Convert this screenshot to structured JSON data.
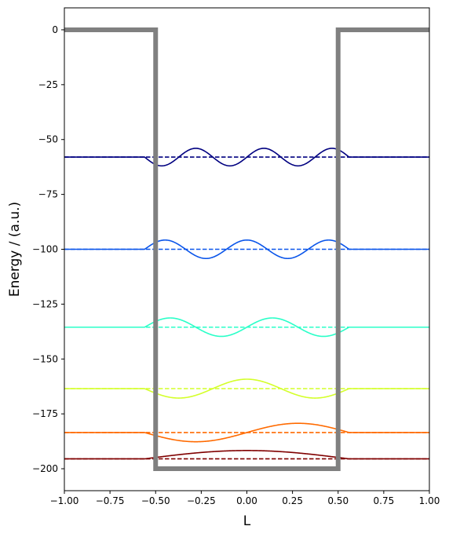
{
  "chart_data": {
    "type": "line",
    "title": "",
    "xlabel": "L",
    "ylabel": "Energy / (a.u.)",
    "xlim": [
      -1.0,
      1.0
    ],
    "ylim": [
      -210,
      10
    ],
    "grid": false,
    "legend": "none",
    "x_ticks": [
      -1.0,
      -0.75,
      -0.5,
      -0.25,
      0.0,
      0.25,
      0.5,
      0.75,
      1.0
    ],
    "x_tick_labels": [
      "−1.00",
      "−0.75",
      "−0.50",
      "−0.25",
      "0.00",
      "0.25",
      "0.50",
      "0.75",
      "1.00"
    ],
    "y_ticks": [
      0,
      -25,
      -50,
      -75,
      -100,
      -125,
      -150,
      -175,
      -200
    ],
    "y_tick_labels": [
      "0",
      "−25",
      "−50",
      "−75",
      "−100",
      "−125",
      "−150",
      "−175",
      "−200"
    ],
    "potential": {
      "color": "#808080",
      "x": [
        -1.0,
        -0.5,
        -0.5,
        0.5,
        0.5,
        1.0
      ],
      "y": [
        0,
        0,
        -200,
        -200,
        0,
        0
      ]
    },
    "series": [
      {
        "level": 1,
        "energy": -195.5,
        "amplitude": 3.8,
        "color": "#800000",
        "x_peak": [
          0.0,
          0.5
        ],
        "node_x": []
      },
      {
        "level": 2,
        "energy": -183.5,
        "amplitude": 4.2,
        "color": "#ff6a00",
        "x_peak": [
          -0.29,
          0.29
        ],
        "node_x": [
          0.0
        ]
      },
      {
        "level": 3,
        "energy": -163.5,
        "amplitude": 4.3,
        "color": "#d4ff2a",
        "x_peak": [
          -0.36,
          0.0,
          0.36
        ],
        "node_x": [
          -0.18,
          0.18
        ]
      },
      {
        "level": 4,
        "energy": -135.5,
        "amplitude": 4.2,
        "color": "#2affc8",
        "x_peak": [
          -0.42,
          -0.13,
          0.13,
          0.42
        ],
        "node_x": [
          -0.27,
          0.0,
          0.27
        ]
      },
      {
        "level": 5,
        "energy": -100.0,
        "amplitude": 4.2,
        "color": "#0a55ea",
        "x_peak": [
          -0.43,
          -0.22,
          0.0,
          0.22,
          0.43
        ],
        "node_x": [
          -0.33,
          -0.11,
          0.11,
          0.33
        ]
      },
      {
        "level": 6,
        "energy": -58.0,
        "amplitude": 4.0,
        "color": "#000080",
        "x_peak": [
          -0.45,
          -0.27,
          -0.09,
          0.09,
          0.27,
          0.45
        ],
        "node_x": [
          -0.36,
          -0.18,
          0.0,
          0.18,
          0.36
        ]
      }
    ]
  }
}
